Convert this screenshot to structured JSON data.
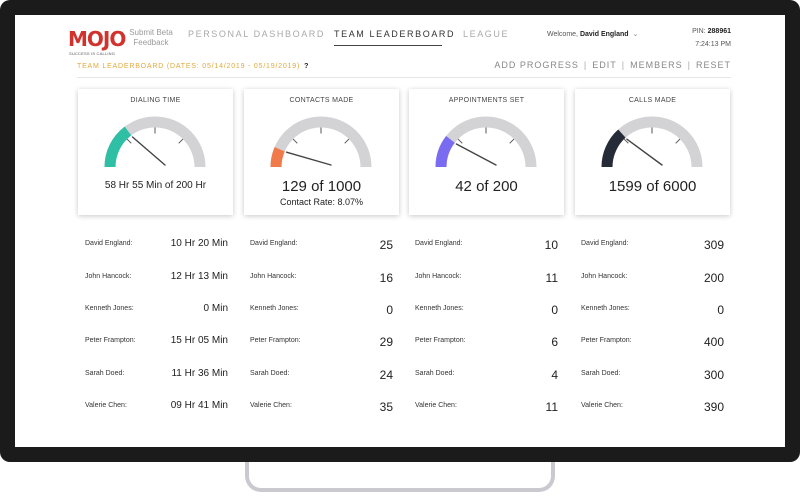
{
  "header": {
    "logo_text": "MOJO",
    "logo_tagline": "SUCCESS IS CALLING",
    "beta_label": "Submit Beta Feedback",
    "nav": [
      {
        "label": "PERSONAL DASHBOARD",
        "active": false
      },
      {
        "label": "TEAM LEADERBOARD",
        "active": true
      },
      {
        "label": "LEAGUE",
        "active": false
      }
    ],
    "welcome_prefix": "Welcome,",
    "user_name": "David England",
    "pin_label": "PIN:",
    "pin_value": "288961",
    "time": "7:24:13 PM"
  },
  "subbar": {
    "title": "TEAM LEADERBOARD (DATES: 05/14/2019 - 05/19/2019)",
    "help": "?",
    "actions": [
      "ADD PROGRESS",
      "EDIT",
      "MEMBERS",
      "RESET"
    ]
  },
  "cards": [
    {
      "title": "DIALING TIME",
      "value": "58 Hr 55 Min of 200 Hr",
      "sub": "",
      "fraction": 0.295,
      "color": "#2ebfa5"
    },
    {
      "title": "CONTACTS MADE",
      "value": "129 of 1000",
      "sub": "Contact Rate: 8.07%",
      "fraction": 0.129,
      "color": "#f07a4a"
    },
    {
      "title": "APPOINTMENTS SET",
      "value": "42 of 200",
      "sub": "",
      "fraction": 0.21,
      "color": "#7a6cf0"
    },
    {
      "title": "CALLS MADE",
      "value": "1599 of 6000",
      "sub": "",
      "fraction": 0.2665,
      "color": "#262b38"
    }
  ],
  "columns": [
    {
      "rows": [
        {
          "name": "David England:",
          "value": "10 Hr 20 Min"
        },
        {
          "name": "John Hancock:",
          "value": "12 Hr 13 Min"
        },
        {
          "name": "Kenneth Jones:",
          "value": "0 Min"
        },
        {
          "name": "Peter Frampton:",
          "value": "15 Hr 05 Min"
        },
        {
          "name": "Sarah Doed:",
          "value": "11 Hr 36 Min"
        },
        {
          "name": "Valerie Chen:",
          "value": "09 Hr 41 Min"
        }
      ]
    },
    {
      "rows": [
        {
          "name": "David England:",
          "value": "25"
        },
        {
          "name": "John Hancock:",
          "value": "16"
        },
        {
          "name": "Kenneth Jones:",
          "value": "0"
        },
        {
          "name": "Peter Frampton:",
          "value": "29"
        },
        {
          "name": "Sarah Doed:",
          "value": "24"
        },
        {
          "name": "Valerie Chen:",
          "value": "35"
        }
      ]
    },
    {
      "rows": [
        {
          "name": "David England:",
          "value": "10"
        },
        {
          "name": "John Hancock:",
          "value": "11"
        },
        {
          "name": "Kenneth Jones:",
          "value": "0"
        },
        {
          "name": "Peter Frampton:",
          "value": "6"
        },
        {
          "name": "Sarah Doed:",
          "value": "4"
        },
        {
          "name": "Valerie Chen:",
          "value": "11"
        }
      ]
    },
    {
      "rows": [
        {
          "name": "David England:",
          "value": "309"
        },
        {
          "name": "John Hancock:",
          "value": "200"
        },
        {
          "name": "Kenneth Jones:",
          "value": "0"
        },
        {
          "name": "Peter Frampton:",
          "value": "400"
        },
        {
          "name": "Sarah Doed:",
          "value": "300"
        },
        {
          "name": "Valerie Chen:",
          "value": "390"
        }
      ]
    }
  ]
}
